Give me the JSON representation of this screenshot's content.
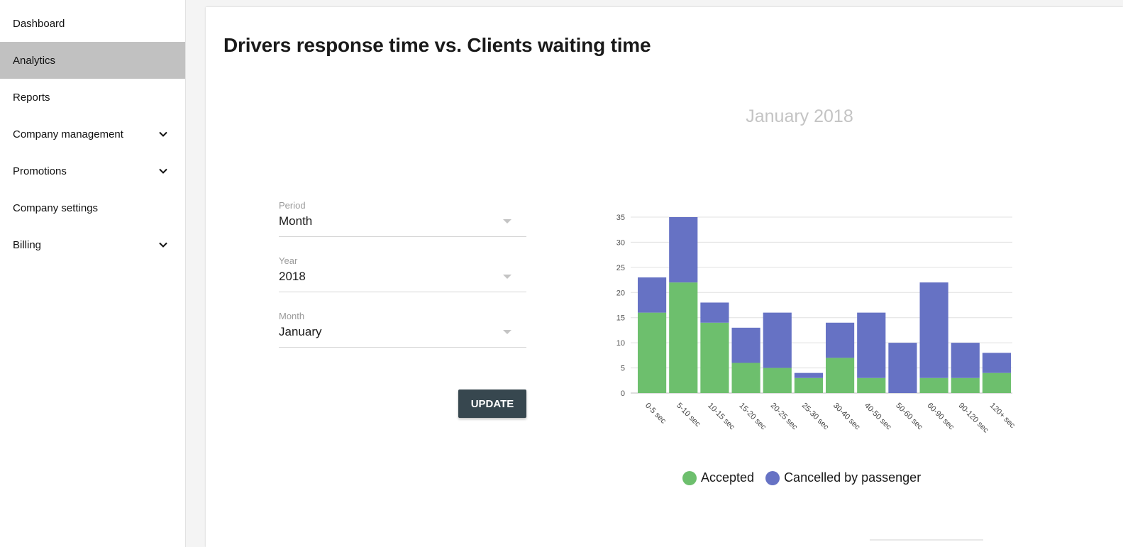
{
  "sidebar": {
    "items": [
      {
        "label": "Dashboard",
        "active": false,
        "expandable": false
      },
      {
        "label": "Analytics",
        "active": true,
        "expandable": false
      },
      {
        "label": "Reports",
        "active": false,
        "expandable": false
      },
      {
        "label": "Company management",
        "active": false,
        "expandable": true
      },
      {
        "label": "Promotions",
        "active": false,
        "expandable": true
      },
      {
        "label": "Company settings",
        "active": false,
        "expandable": false
      },
      {
        "label": "Billing",
        "active": false,
        "expandable": true
      }
    ]
  },
  "main": {
    "title": "Drivers response time vs. Clients waiting time"
  },
  "form": {
    "period": {
      "label": "Period",
      "value": "Month"
    },
    "year": {
      "label": "Year",
      "value": "2018"
    },
    "month": {
      "label": "Month",
      "value": "January"
    },
    "update_label": "UPDATE"
  },
  "colors": {
    "accepted": "#6dbf6d",
    "cancelled": "#6672c4",
    "active_nav": "#c1c1c1",
    "button": "#37474f"
  },
  "chart_data": {
    "type": "bar",
    "stacked": true,
    "title": "January 2018",
    "xlabel": "",
    "ylabel": "",
    "ylim": [
      0,
      35
    ],
    "yticks": [
      0,
      5,
      10,
      15,
      20,
      25,
      30,
      35
    ],
    "grid": true,
    "legend_position": "bottom",
    "categories": [
      "0-5 sec",
      "5-10 sec",
      "10-15 sec",
      "15-20 sec",
      "20-25 sec",
      "25-30 sec",
      "30-40 sec",
      "40-50 sec",
      "50-60 sec",
      "60-90 sec",
      "90-120 sec",
      "120+ sec"
    ],
    "series": [
      {
        "name": "Accepted",
        "values": [
          16,
          22,
          14,
          6,
          5,
          3,
          7,
          3,
          0,
          3,
          3,
          4
        ]
      },
      {
        "name": "Cancelled by passenger",
        "values": [
          7,
          13,
          4,
          7,
          11,
          1,
          7,
          13,
          10,
          19,
          7,
          4
        ]
      }
    ]
  }
}
